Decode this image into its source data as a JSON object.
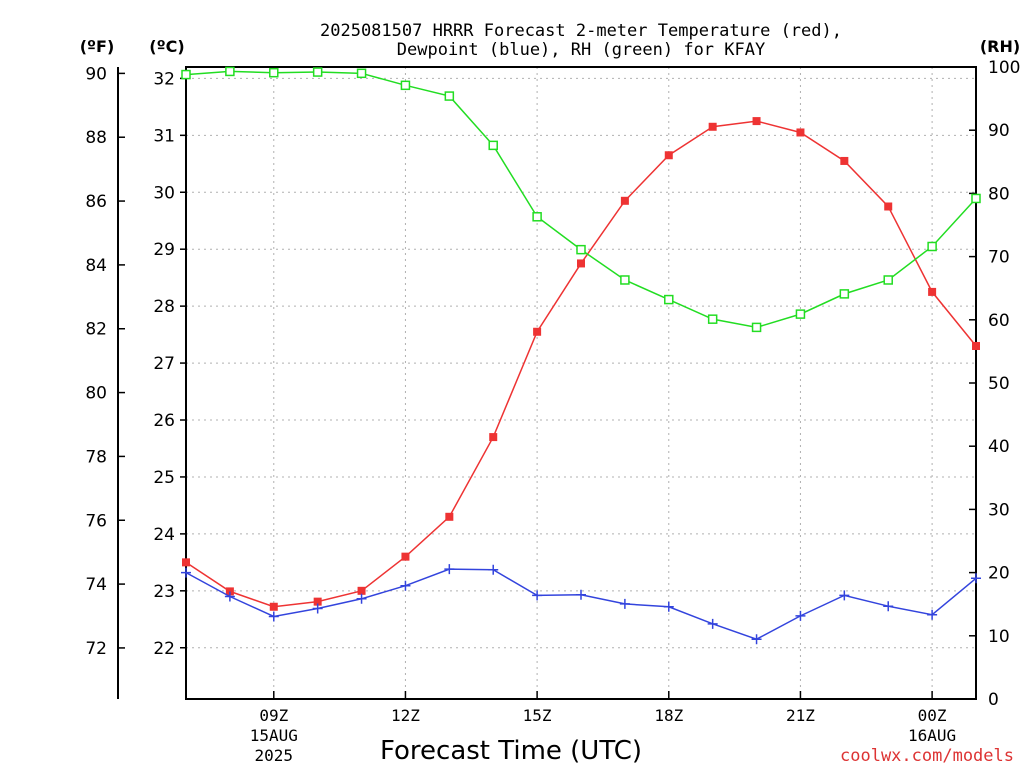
{
  "chart_data": {
    "type": "line",
    "title": {
      "line1": "2025081507 HRRR Forecast 2-meter Temperature (red),",
      "line2": "Dewpoint (blue), RH (green) for KFAY"
    },
    "xlabel": "Forecast Time (UTC)",
    "x": [
      "07Z",
      "08Z",
      "09Z",
      "10Z",
      "11Z",
      "12Z",
      "13Z",
      "14Z",
      "15Z",
      "16Z",
      "17Z",
      "18Z",
      "19Z",
      "20Z",
      "21Z",
      "22Z",
      "23Z",
      "00Z",
      "01Z"
    ],
    "xticks": [
      {
        "label": "09Z",
        "sub1": "15AUG",
        "sub2": "2025"
      },
      {
        "label": "12Z",
        "sub1": "",
        "sub2": ""
      },
      {
        "label": "15Z",
        "sub1": "",
        "sub2": ""
      },
      {
        "label": "18Z",
        "sub1": "",
        "sub2": ""
      },
      {
        "label": "21Z",
        "sub1": "",
        "sub2": ""
      },
      {
        "label": "00Z",
        "sub1": "16AUG",
        "sub2": ""
      }
    ],
    "axes": {
      "fahrenheit": {
        "label": "(ºF)",
        "ticks": [
          "90",
          "88",
          "86",
          "84",
          "82",
          "80",
          "78",
          "76",
          "74",
          "72"
        ],
        "range": [
          70.4,
          90.2
        ]
      },
      "celsius": {
        "label": "(ºC)",
        "ticks": [
          "32",
          "31",
          "30",
          "29",
          "28",
          "27",
          "26",
          "25",
          "24",
          "23",
          "22"
        ],
        "range": [
          21.1,
          32.2
        ]
      },
      "rh": {
        "label": "(RH)",
        "ticks": [
          "100",
          "90",
          "80",
          "70",
          "60",
          "50",
          "40",
          "30",
          "20",
          "10",
          "0"
        ],
        "range": [
          0,
          100
        ]
      }
    },
    "grid": true,
    "series": [
      {
        "name": "Temperature",
        "color": "#ee3333",
        "marker": "filled-square",
        "unit": "C",
        "values": [
          23.5,
          22.99,
          22.72,
          22.81,
          23.0,
          23.6,
          24.3,
          25.7,
          27.55,
          28.75,
          29.85,
          30.65,
          31.15,
          31.25,
          31.05,
          30.55,
          29.75,
          28.25,
          27.3
        ]
      },
      {
        "name": "Dewpoint",
        "color": "#3344dd",
        "marker": "plus",
        "unit": "C",
        "values": [
          23.32,
          22.9,
          22.55,
          22.69,
          22.86,
          23.09,
          23.38,
          23.37,
          22.92,
          22.93,
          22.77,
          22.72,
          22.42,
          22.15,
          22.56,
          22.92,
          22.73,
          22.58,
          23.22
        ]
      },
      {
        "name": "RH",
        "color": "#22dd22",
        "marker": "open-square",
        "unit": "%",
        "values": [
          98.8,
          99.3,
          99.1,
          99.2,
          99.0,
          97.1,
          95.4,
          87.6,
          76.3,
          71.1,
          66.3,
          63.2,
          60.1,
          58.8,
          60.9,
          64.1,
          66.3,
          71.6,
          79.2
        ]
      }
    ]
  },
  "credit": {
    "text": "coolwx.com/models",
    "color": "#dd3333"
  }
}
